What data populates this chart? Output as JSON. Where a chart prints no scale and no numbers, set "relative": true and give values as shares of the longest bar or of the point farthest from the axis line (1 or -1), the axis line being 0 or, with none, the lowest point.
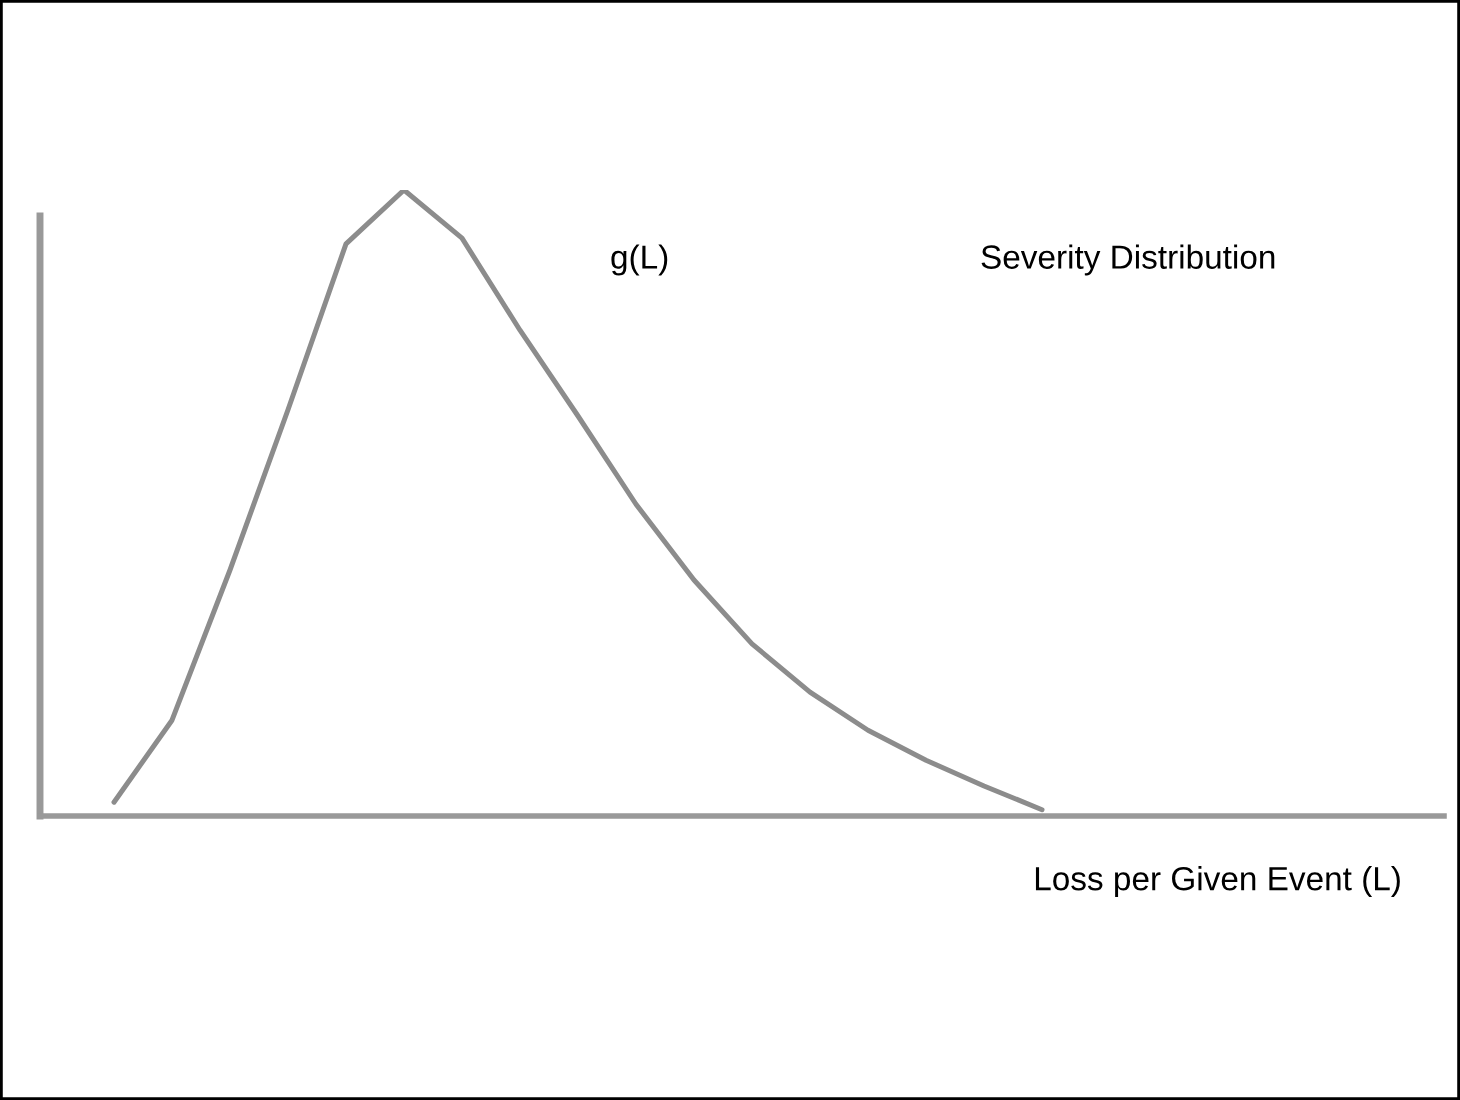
{
  "chart_data": {
    "type": "line",
    "relative": true,
    "xlabel": "Loss per Given Event (L)",
    "categories": [
      null,
      null,
      null,
      null,
      null,
      null,
      null,
      null,
      null,
      null,
      null,
      null,
      null,
      null,
      null,
      null,
      null
    ],
    "series": [
      {
        "color": "#8c8c8c",
        "values": [
          0.022,
          0.153,
          0.393,
          0.649,
          0.914,
          1.0,
          0.923,
          0.776,
          0.639,
          0.498,
          0.377,
          0.275,
          0.198,
          0.137,
          0.089,
          0.048,
          0.01
        ]
      }
    ],
    "annotations": [
      "g(L)",
      "Severity Distribution"
    ],
    "grid": false,
    "legend": false,
    "tick_labels": false,
    "marker": "none",
    "line_style": "solid"
  }
}
